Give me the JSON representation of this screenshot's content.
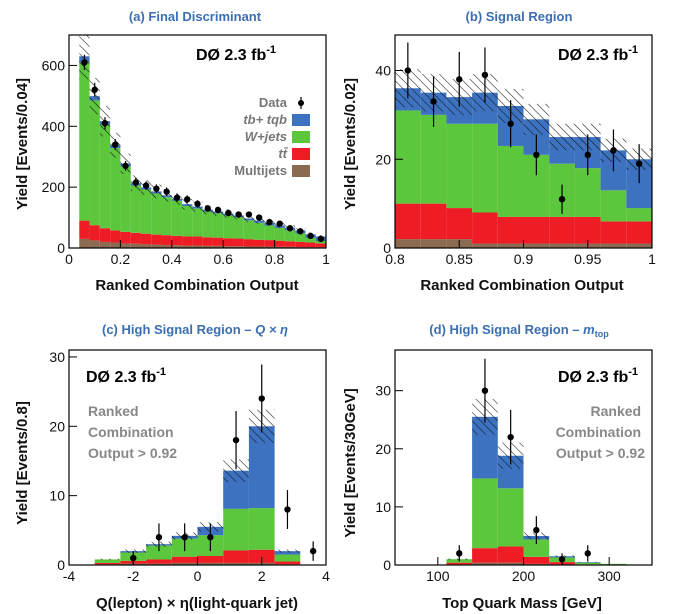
{
  "chart_data": [
    {
      "type": "bar",
      "panel": "a",
      "title": "(a)  Final Discriminant",
      "xlabel": "Ranked Combination Output",
      "ylabel": "Yield  [Events/0.04]",
      "experiment": "DØ  2.3 fb",
      "lumi_sup": "-1",
      "xlim": [
        0,
        1
      ],
      "ylim": [
        0,
        700
      ],
      "xticks": [
        0,
        0.2,
        0.4,
        0.6,
        0.8,
        1
      ],
      "xtick_labels": [
        "0",
        "0.2",
        "0.4",
        "0.6",
        "0.8",
        "1"
      ],
      "yticks": [
        0,
        200,
        400,
        600
      ],
      "ytick_labels": [
        "0",
        "200",
        "400",
        "600"
      ],
      "bin_edges": [
        0.04,
        0.08,
        0.12,
        0.16,
        0.2,
        0.24,
        0.28,
        0.32,
        0.36,
        0.4,
        0.44,
        0.48,
        0.52,
        0.56,
        0.6,
        0.64,
        0.68,
        0.72,
        0.76,
        0.8,
        0.84,
        0.88,
        0.92,
        0.96,
        1.0
      ],
      "series": [
        {
          "name": "Multijets",
          "values": [
            30,
            25,
            20,
            18,
            15,
            14,
            12,
            11,
            10,
            9,
            8,
            8,
            7,
            7,
            6,
            6,
            5,
            5,
            5,
            4,
            4,
            3,
            3,
            3
          ]
        },
        {
          "name": "tt̄",
          "values": [
            60,
            50,
            45,
            40,
            38,
            36,
            35,
            33,
            32,
            31,
            30,
            30,
            28,
            27,
            26,
            25,
            24,
            22,
            21,
            20,
            18,
            17,
            15,
            12
          ]
        },
        {
          "name": "W+jets",
          "values": [
            520,
            410,
            340,
            270,
            215,
            155,
            145,
            135,
            125,
            115,
            100,
            92,
            85,
            80,
            75,
            70,
            62,
            56,
            48,
            42,
            36,
            28,
            15,
            8
          ]
        },
        {
          "name": "tb+ tqb",
          "values": [
            20,
            14,
            12,
            10,
            9,
            8,
            7,
            7,
            6,
            6,
            6,
            6,
            6,
            6,
            6,
            6,
            6,
            7,
            8,
            8,
            9,
            10,
            12,
            15
          ]
        }
      ],
      "data_points": {
        "name": "Data",
        "x": [
          0.06,
          0.1,
          0.14,
          0.18,
          0.22,
          0.26,
          0.3,
          0.34,
          0.38,
          0.42,
          0.46,
          0.5,
          0.54,
          0.58,
          0.62,
          0.66,
          0.7,
          0.74,
          0.78,
          0.82,
          0.86,
          0.9,
          0.94,
          0.98
        ],
        "y": [
          610,
          520,
          410,
          340,
          270,
          215,
          205,
          195,
          185,
          165,
          160,
          145,
          130,
          125,
          115,
          110,
          110,
          100,
          85,
          80,
          65,
          55,
          40,
          30
        ],
        "err": [
          25,
          23,
          20,
          18,
          16,
          15,
          14,
          14,
          14,
          13,
          13,
          12,
          11,
          11,
          11,
          10,
          10,
          10,
          9,
          9,
          8,
          7,
          6,
          5
        ]
      },
      "legend": {
        "position": "right",
        "entries": [
          {
            "label": "Data",
            "kind": "marker"
          },
          {
            "label": "tb+ tqb",
            "kind": "box",
            "color": "#3d72c0"
          },
          {
            "label": "W+jets",
            "kind": "box",
            "color": "#5cc63c"
          },
          {
            "label": "tt̄",
            "kind": "box",
            "color": "#ee1c25"
          },
          {
            "label": "Multijets",
            "kind": "box",
            "color": "#8a6a50"
          }
        ]
      }
    },
    {
      "type": "bar",
      "panel": "b",
      "title": "(b)  Signal Region",
      "xlabel": "Ranked Combination Output",
      "ylabel": "Yield  [Events/0.02]",
      "experiment": "DØ  2.3 fb",
      "lumi_sup": "-1",
      "xlim": [
        0.8,
        1
      ],
      "ylim": [
        0,
        48
      ],
      "xticks": [
        0.8,
        0.85,
        0.9,
        0.95,
        1
      ],
      "xtick_labels": [
        "0.8",
        "0.85",
        "0.9",
        "0.95",
        "1"
      ],
      "yticks": [
        0,
        20,
        40
      ],
      "ytick_labels": [
        "0",
        "20",
        "40"
      ],
      "bin_edges": [
        0.8,
        0.82,
        0.84,
        0.86,
        0.88,
        0.9,
        0.92,
        0.94,
        0.96,
        0.98,
        1.0
      ],
      "series": [
        {
          "name": "Multijets",
          "values": [
            2,
            2,
            2,
            1,
            1,
            1,
            1,
            1,
            1,
            1
          ]
        },
        {
          "name": "tt̄",
          "values": [
            8,
            8,
            7,
            7,
            6,
            6,
            6,
            6,
            5,
            5
          ]
        },
        {
          "name": "W+jets",
          "values": [
            21,
            20,
            19,
            20,
            16,
            14,
            12,
            11,
            7,
            3
          ]
        },
        {
          "name": "tb+ tqb",
          "values": [
            5,
            5,
            6,
            7,
            9,
            8,
            6,
            7,
            9,
            11
          ]
        }
      ],
      "data_points": {
        "name": "Data",
        "x": [
          0.81,
          0.83,
          0.85,
          0.87,
          0.89,
          0.91,
          0.93,
          0.95,
          0.97,
          0.99
        ],
        "y": [
          40,
          33,
          38,
          39,
          28,
          21,
          11,
          21,
          22,
          19
        ],
        "err": [
          6.3,
          5.7,
          6.2,
          6.2,
          5.3,
          4.6,
          3.3,
          4.6,
          4.7,
          4.4
        ]
      }
    },
    {
      "type": "bar",
      "panel": "c",
      "title_prefix": "(c)  High Signal Region – ",
      "title_math": "Q × η",
      "xlabel": "Q(lepton) × η(light-quark jet)",
      "ylabel": "Yield  [Events/0.8]",
      "experiment": "DØ  2.3 fb",
      "lumi_sup": "-1",
      "annotation": [
        "Ranked",
        "Combination",
        "Output > 0.92"
      ],
      "xlim": [
        -4,
        4
      ],
      "ylim": [
        0,
        31
      ],
      "xticks": [
        -4,
        -2,
        0,
        2,
        4
      ],
      "xtick_labels": [
        "-4",
        "-2",
        "0",
        "2",
        "4"
      ],
      "yticks": [
        0,
        10,
        20,
        30
      ],
      "ytick_labels": [
        "0",
        "10",
        "20",
        "30"
      ],
      "bin_edges": [
        -3.2,
        -2.4,
        -1.6,
        -0.8,
        0.0,
        0.8,
        1.6,
        2.4,
        3.2
      ],
      "series": [
        {
          "name": "Multijets",
          "values": [
            0.1,
            0.2,
            0.2,
            0.3,
            0.3,
            0.3,
            0.3,
            0.1
          ]
        },
        {
          "name": "tt̄",
          "values": [
            0.2,
            0.4,
            0.6,
            0.9,
            1.0,
            1.8,
            1.9,
            0.4
          ]
        },
        {
          "name": "W+jets",
          "values": [
            0.5,
            1.2,
            2.0,
            2.6,
            3.0,
            6.0,
            6.0,
            1.0
          ]
        },
        {
          "name": "tb+ tqb",
          "values": [
            0.0,
            0.2,
            0.2,
            0.4,
            1.2,
            5.5,
            11.8,
            0.5
          ]
        }
      ],
      "data_points": {
        "name": "Data",
        "x": [
          -2.0,
          -1.2,
          -0.4,
          0.4,
          1.2,
          2.0,
          2.8,
          3.6
        ],
        "y": [
          1,
          4,
          4,
          4,
          18,
          24,
          8,
          2
        ],
        "err": [
          1.0,
          2.0,
          2.0,
          2.0,
          4.2,
          4.9,
          2.8,
          1.4
        ]
      }
    },
    {
      "type": "bar",
      "panel": "d",
      "title_prefix": "(d)  High Signal Region – ",
      "title_math": "m",
      "title_math_sub": "top",
      "xlabel": "Top Quark Mass  [GeV]",
      "ylabel": "Yield  [Events/30GeV]",
      "experiment": "DØ  2.3 fb",
      "lumi_sup": "-1",
      "annotation": [
        "Ranked",
        "Combination",
        "Output > 0.92"
      ],
      "xlim": [
        50,
        350
      ],
      "ylim": [
        0,
        37
      ],
      "xticks": [
        100,
        200,
        300
      ],
      "xtick_labels": [
        "100",
        "200",
        "300"
      ],
      "yticks": [
        0,
        10,
        20,
        30
      ],
      "ytick_labels": [
        "0",
        "10",
        "20",
        "30"
      ],
      "bin_edges": [
        110,
        140,
        170,
        200,
        230,
        260,
        290,
        320
      ],
      "series": [
        {
          "name": "Multijets",
          "values": [
            0.1,
            0.4,
            0.4,
            0.2,
            0.1,
            0.0,
            0.0
          ]
        },
        {
          "name": "tt̄",
          "values": [
            0.3,
            2.5,
            2.8,
            1.2,
            0.4,
            0.1,
            0.05
          ]
        },
        {
          "name": "W+jets",
          "values": [
            0.6,
            12.0,
            10.0,
            3.0,
            0.8,
            0.3,
            0.15
          ]
        },
        {
          "name": "tb+ tqb",
          "values": [
            0.0,
            10.6,
            5.6,
            0.6,
            0.2,
            0.1,
            0.0
          ]
        }
      ],
      "data_points": {
        "name": "Data",
        "x": [
          125,
          155,
          185,
          215,
          245,
          275
        ],
        "y": [
          2,
          30,
          22,
          6,
          1,
          2
        ],
        "err": [
          1.4,
          5.5,
          4.7,
          2.4,
          1.0,
          1.4
        ]
      }
    }
  ]
}
